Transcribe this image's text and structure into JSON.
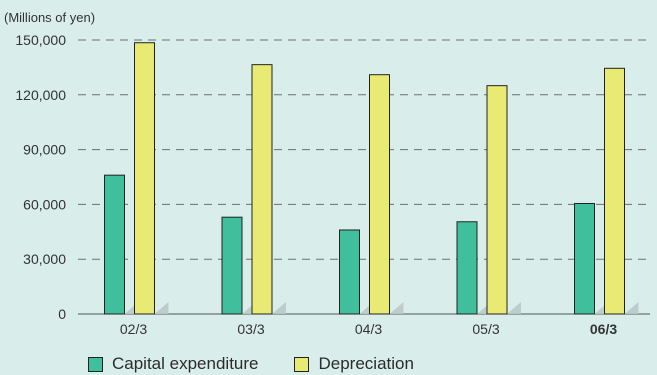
{
  "chart_data": {
    "type": "bar",
    "unit_label": "(Millions of yen)",
    "categories": [
      "02/3",
      "03/3",
      "04/3",
      "05/3",
      "06/3"
    ],
    "highlight_category": "06/3",
    "series": [
      {
        "name": "Capital expenditure",
        "color": "#3fbf9b",
        "values": [
          76000,
          53000,
          46000,
          50500,
          60500
        ]
      },
      {
        "name": "Depreciation",
        "color": "#e8ea73",
        "values": [
          148500,
          136500,
          131000,
          125000,
          134500
        ]
      }
    ],
    "ylim": [
      0,
      150000
    ],
    "yticks": [
      "0",
      "30,000",
      "60,000",
      "90,000",
      "120,000",
      "150,000"
    ],
    "ytick_values": [
      0,
      30000,
      60000,
      90000,
      120000,
      150000
    ],
    "grid": "dashed horizontal",
    "legend_position": "bottom-left"
  }
}
